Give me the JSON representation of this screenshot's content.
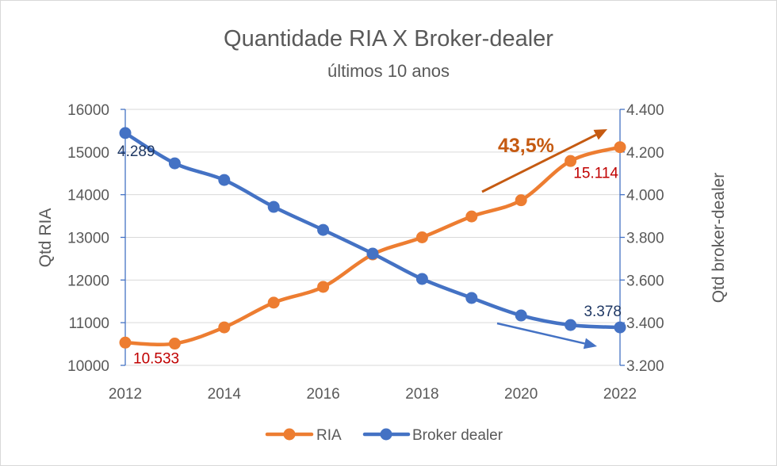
{
  "chart_data": {
    "type": "line",
    "title": "Quantidade RIA X Broker-dealer",
    "subtitle": "últimos 10 anos",
    "xlabel": "",
    "ylabel": "Qtd RIA",
    "y2label": "Qtd broker-dealer",
    "x": [
      2012,
      2013,
      2014,
      2015,
      2016,
      2017,
      2018,
      2019,
      2020,
      2021,
      2022
    ],
    "xlim": [
      2012,
      2022
    ],
    "x_tick_labels": [
      "2012",
      "2014",
      "2016",
      "2018",
      "2020",
      "2022"
    ],
    "ylim": [
      10000,
      16000
    ],
    "y_tick_labels": [
      "10000",
      "11000",
      "12000",
      "13000",
      "14000",
      "15000",
      "16000"
    ],
    "y2lim": [
      3200,
      4400
    ],
    "y2_tick_labels": [
      "3.200",
      "3.400",
      "3.600",
      "3.800",
      "4.000",
      "4.200",
      "4.400"
    ],
    "grid": true,
    "legend_position": "bottom",
    "series": [
      {
        "name": "RIA",
        "axis": "left",
        "color": "#ED7D31",
        "values": [
          10533,
          10510,
          10890,
          11470,
          11840,
          12600,
          13000,
          13490,
          13870,
          14790,
          15114
        ]
      },
      {
        "name": "Broker dealer",
        "axis": "right",
        "color": "#4472C4",
        "values": [
          4289,
          4147,
          4069,
          3943,
          3835,
          3724,
          3605,
          3516,
          3434,
          3389,
          3378
        ]
      }
    ],
    "data_labels": [
      {
        "series": "RIA",
        "x": 2012,
        "text": "10.533",
        "color": "#C00000"
      },
      {
        "series": "RIA",
        "x": 2022,
        "text": "15.114",
        "color": "#C00000"
      },
      {
        "series": "Broker dealer",
        "x": 2012,
        "text": "4.289",
        "color": "#1F3864"
      },
      {
        "series": "Broker dealer",
        "x": 2022,
        "text": "3.378",
        "color": "#1F3864"
      }
    ],
    "growth_label": {
      "text": "43,5%",
      "color": "#C55A11"
    },
    "trend_arrows": [
      {
        "series": "RIA",
        "direction": "up",
        "color": "#C55A11"
      },
      {
        "series": "Broker dealer",
        "direction": "down",
        "color": "#4472C4"
      }
    ]
  }
}
